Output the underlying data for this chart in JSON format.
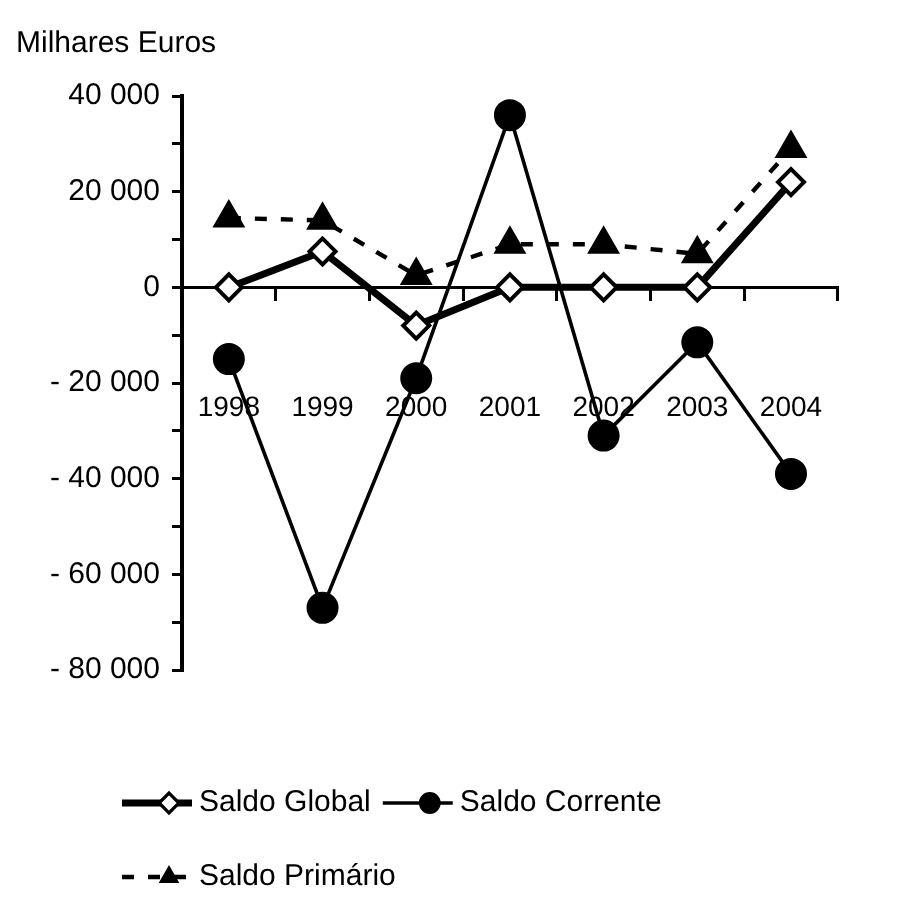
{
  "chart_data": {
    "type": "line",
    "ylabel": "Milhares Euros",
    "categories": [
      "1998",
      "1999",
      "2000",
      "2001",
      "2002",
      "2003",
      "2004"
    ],
    "series": [
      {
        "name": "Saldo Global",
        "color": "#000000",
        "marker": "diamond",
        "line_style": "solid",
        "values": [
          0,
          7500,
          -8000,
          0,
          0,
          0,
          22000
        ]
      },
      {
        "name": "Saldo Corrente",
        "color": "#000000",
        "marker": "circle",
        "line_style": "solid",
        "values": [
          -15000,
          -67000,
          -19000,
          36000,
          -31000,
          -11500,
          -39000
        ]
      },
      {
        "name": "Saldo Primário",
        "color": "#000000",
        "marker": "triangle",
        "line_style": "dashed",
        "values": [
          14500,
          14000,
          2500,
          9000,
          9000,
          7000,
          29000
        ]
      }
    ],
    "ylim": [
      -80000,
      40000
    ],
    "yticks": [
      {
        "value": -80000,
        "label": "- 80 000"
      },
      {
        "value": -70000,
        "label": null
      },
      {
        "value": -60000,
        "label": "- 60 000"
      },
      {
        "value": -50000,
        "label": null
      },
      {
        "value": -40000,
        "label": "- 40 000"
      },
      {
        "value": -30000,
        "label": null
      },
      {
        "value": -20000,
        "label": "- 20 000"
      },
      {
        "value": -10000,
        "label": null
      },
      0,
      {
        "value": 10000,
        "label": null
      },
      {
        "value": 20000,
        "label": "20 000"
      },
      {
        "value": 30000,
        "label": null
      },
      {
        "value": 40000,
        "label": "40 000"
      }
    ],
    "legend": "bottom"
  }
}
